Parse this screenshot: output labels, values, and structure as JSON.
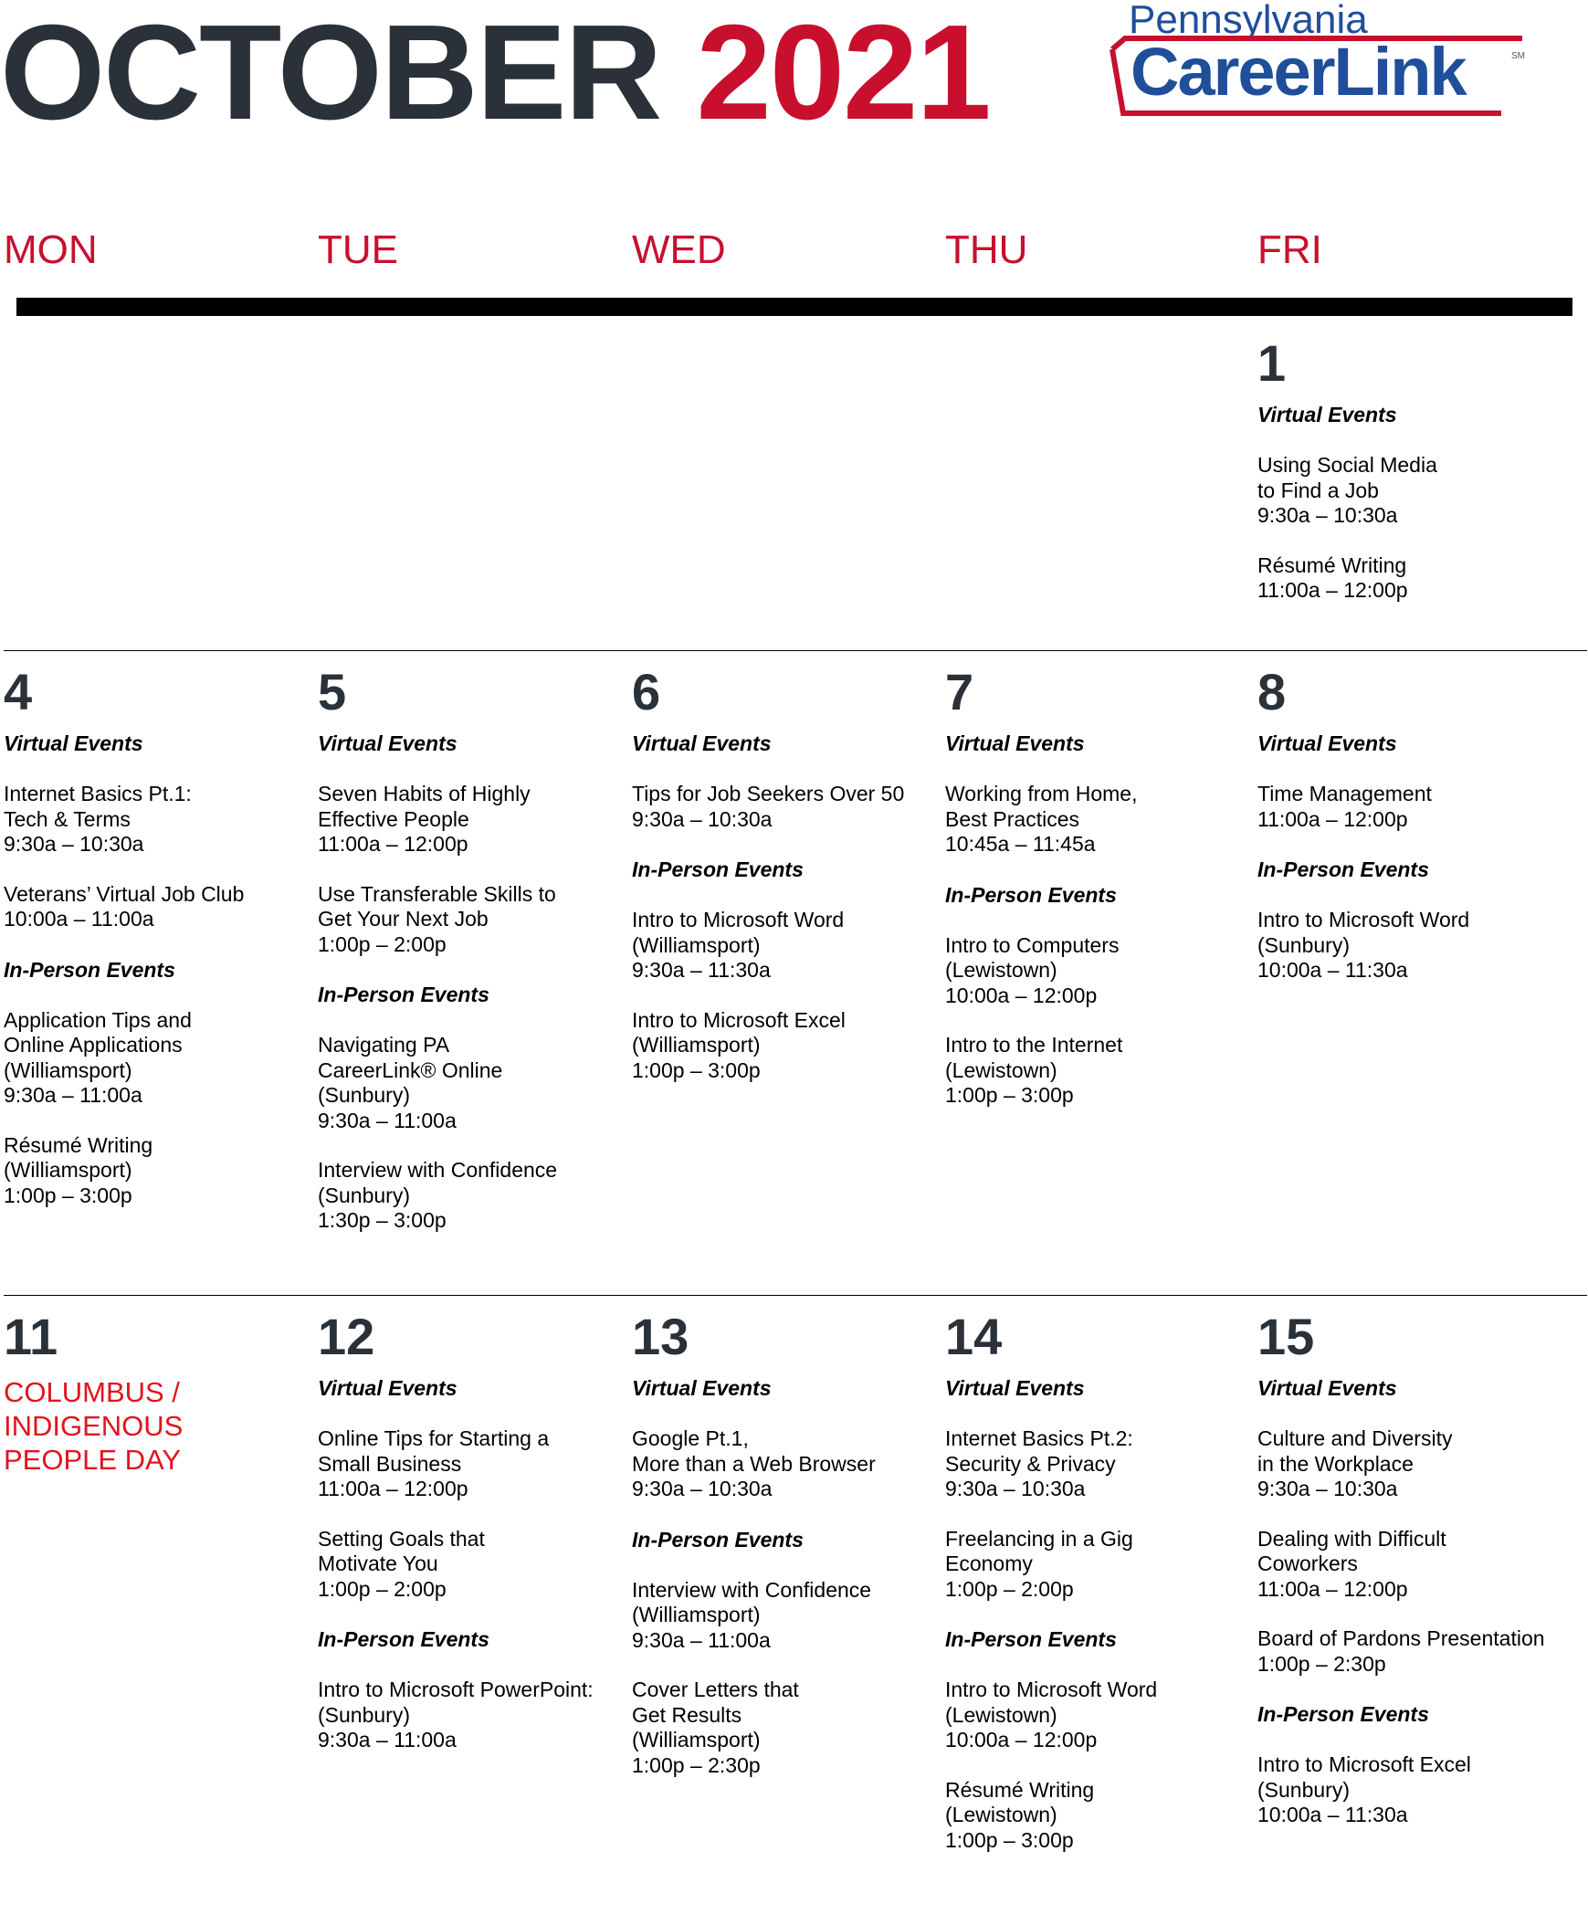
{
  "header": {
    "month": "OCTOBER",
    "year": "2021",
    "logo_state": "Pennsylvania",
    "logo_brand": "CareerLink",
    "logo_mark": "SM"
  },
  "weekdays": [
    "MON",
    "TUE",
    "WED",
    "THU",
    "FRI"
  ],
  "colors": {
    "accent_red": "#c8102e",
    "dark_text": "#2a3139",
    "holiday_red": "#e1141e",
    "logo_blue": "#1f4e9a"
  },
  "days": [
    {
      "day": "1",
      "sections": [
        {
          "heading": "Virtual Events",
          "events": [
            [
              "Using Social Media",
              "to Find a Job",
              "9:30a – 10:30a"
            ],
            [
              "Résumé Writing",
              "11:00a – 12:00p"
            ]
          ]
        }
      ]
    },
    {
      "day": "4",
      "sections": [
        {
          "heading": "Virtual Events",
          "events": [
            [
              "Internet Basics Pt.1:",
              "Tech & Terms",
              "9:30a – 10:30a"
            ],
            [
              "Veterans’ Virtual Job Club",
              "10:00a – 11:00a"
            ]
          ]
        },
        {
          "heading": "In-Person Events",
          "events": [
            [
              "Application Tips and",
              "Online Applications",
              "(Williamsport)",
              "9:30a – 11:00a"
            ],
            [
              "Résumé Writing",
              "(Williamsport)",
              "1:00p – 3:00p"
            ]
          ]
        }
      ]
    },
    {
      "day": "5",
      "sections": [
        {
          "heading": "Virtual Events",
          "events": [
            [
              "Seven Habits of Highly",
              "Effective People",
              "11:00a – 12:00p"
            ],
            [
              "Use Transferable Skills to",
              "Get Your Next Job",
              "1:00p – 2:00p"
            ]
          ]
        },
        {
          "heading": "In-Person Events",
          "events": [
            [
              "Navigating PA",
              "CareerLink® Online",
              "(Sunbury)",
              "9:30a – 11:00a"
            ],
            [
              "Interview with Confidence",
              "(Sunbury)",
              "1:30p – 3:00p"
            ]
          ]
        }
      ]
    },
    {
      "day": "6",
      "sections": [
        {
          "heading": "Virtual Events",
          "events": [
            [
              "Tips for Job Seekers Over 50",
              "9:30a – 10:30a"
            ]
          ]
        },
        {
          "heading": "In-Person Events",
          "events": [
            [
              "Intro to Microsoft Word",
              "(Williamsport)",
              "9:30a – 11:30a"
            ],
            [
              "Intro to Microsoft Excel",
              "(Williamsport)",
              "1:00p – 3:00p"
            ]
          ]
        }
      ]
    },
    {
      "day": "7",
      "sections": [
        {
          "heading": "Virtual Events",
          "events": [
            [
              "Working from Home,",
              "Best Practices",
              "10:45a – 11:45a"
            ]
          ]
        },
        {
          "heading": "In-Person Events",
          "events": [
            [
              "Intro to Computers",
              "(Lewistown)",
              "10:00a – 12:00p"
            ],
            [
              "Intro to the Internet",
              "(Lewistown)",
              "1:00p – 3:00p"
            ]
          ]
        }
      ]
    },
    {
      "day": "8",
      "sections": [
        {
          "heading": "Virtual Events",
          "events": [
            [
              "Time Management",
              "11:00a – 12:00p"
            ]
          ]
        },
        {
          "heading": "In-Person Events",
          "events": [
            [
              "Intro to Microsoft Word",
              "(Sunbury)",
              "10:00a – 11:30a"
            ]
          ]
        }
      ]
    },
    {
      "day": "11",
      "holiday": [
        "COLUMBUS /",
        "INDIGENOUS",
        "PEOPLE DAY"
      ],
      "sections": []
    },
    {
      "day": "12",
      "sections": [
        {
          "heading": "Virtual Events",
          "events": [
            [
              "Online Tips for Starting a",
              "Small Business",
              "11:00a – 12:00p"
            ],
            [
              "Setting Goals that",
              "Motivate You",
              "1:00p – 2:00p"
            ]
          ]
        },
        {
          "heading": "In-Person Events",
          "events": [
            [
              "Intro to Microsoft PowerPoint:",
              "(Sunbury)",
              "9:30a – 11:00a"
            ]
          ]
        }
      ]
    },
    {
      "day": "13",
      "sections": [
        {
          "heading": "Virtual Events",
          "events": [
            [
              "Google Pt.1,",
              "More than a Web Browser",
              "9:30a – 10:30a"
            ]
          ]
        },
        {
          "heading": "In-Person Events",
          "events": [
            [
              "Interview with Confidence",
              "(Williamsport)",
              "9:30a – 11:00a"
            ],
            [
              "Cover Letters that",
              "Get Results",
              "(Williamsport)",
              "1:00p – 2:30p"
            ]
          ]
        }
      ]
    },
    {
      "day": "14",
      "sections": [
        {
          "heading": "Virtual Events",
          "events": [
            [
              "Internet Basics Pt.2:",
              "Security & Privacy",
              "9:30a – 10:30a"
            ],
            [
              "Freelancing in a Gig",
              "Economy",
              "1:00p – 2:00p"
            ]
          ]
        },
        {
          "heading": "In-Person Events",
          "events": [
            [
              "Intro to Microsoft Word",
              "(Lewistown)",
              "10:00a – 12:00p"
            ],
            [
              "Résumé Writing",
              "(Lewistown)",
              "1:00p – 3:00p"
            ]
          ]
        }
      ]
    },
    {
      "day": "15",
      "sections": [
        {
          "heading": "Virtual Events",
          "events": [
            [
              "Culture and Diversity",
              "in the Workplace",
              "9:30a – 10:30a"
            ],
            [
              "Dealing with Difficult",
              "Coworkers",
              "11:00a – 12:00p"
            ],
            [
              "Board of Pardons Presentation",
              "1:00p – 2:30p"
            ]
          ]
        },
        {
          "heading": "In-Person Events",
          "events": [
            [
              "Intro to Microsoft Excel",
              "(Sunbury)",
              "10:00a – 11:30a"
            ]
          ]
        }
      ]
    }
  ]
}
